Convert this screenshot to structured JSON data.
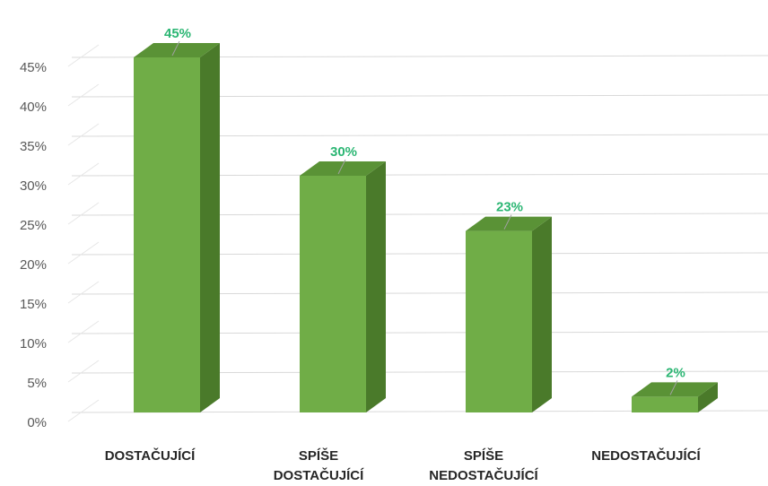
{
  "chart_data": {
    "type": "bar",
    "style": "3d-column",
    "categories": [
      [
        "DOSTAČUJÍCÍ"
      ],
      [
        "SPÍŠE",
        "DOSTAČUJÍCÍ"
      ],
      [
        "SPÍŠE",
        "NEDOSTAČUJÍCÍ"
      ],
      [
        "NEDOSTAČUJÍCÍ"
      ]
    ],
    "values": [
      45,
      30,
      23,
      2
    ],
    "data_labels": [
      "45%",
      "30%",
      "23%",
      "2%"
    ],
    "y_ticks": [
      "0%",
      "5%",
      "10%",
      "15%",
      "20%",
      "25%",
      "30%",
      "35%",
      "40%",
      "45%"
    ],
    "ylim": [
      0,
      45
    ],
    "grid": true,
    "legend": "none",
    "colors": {
      "bar_front": "#70ad47",
      "bar_side": "#4a7a2a",
      "bar_top": "#5a9236",
      "label": "#2bb673",
      "grid": "#d9d9d9",
      "axis_text": "#595959",
      "category_text": "#262626"
    }
  }
}
